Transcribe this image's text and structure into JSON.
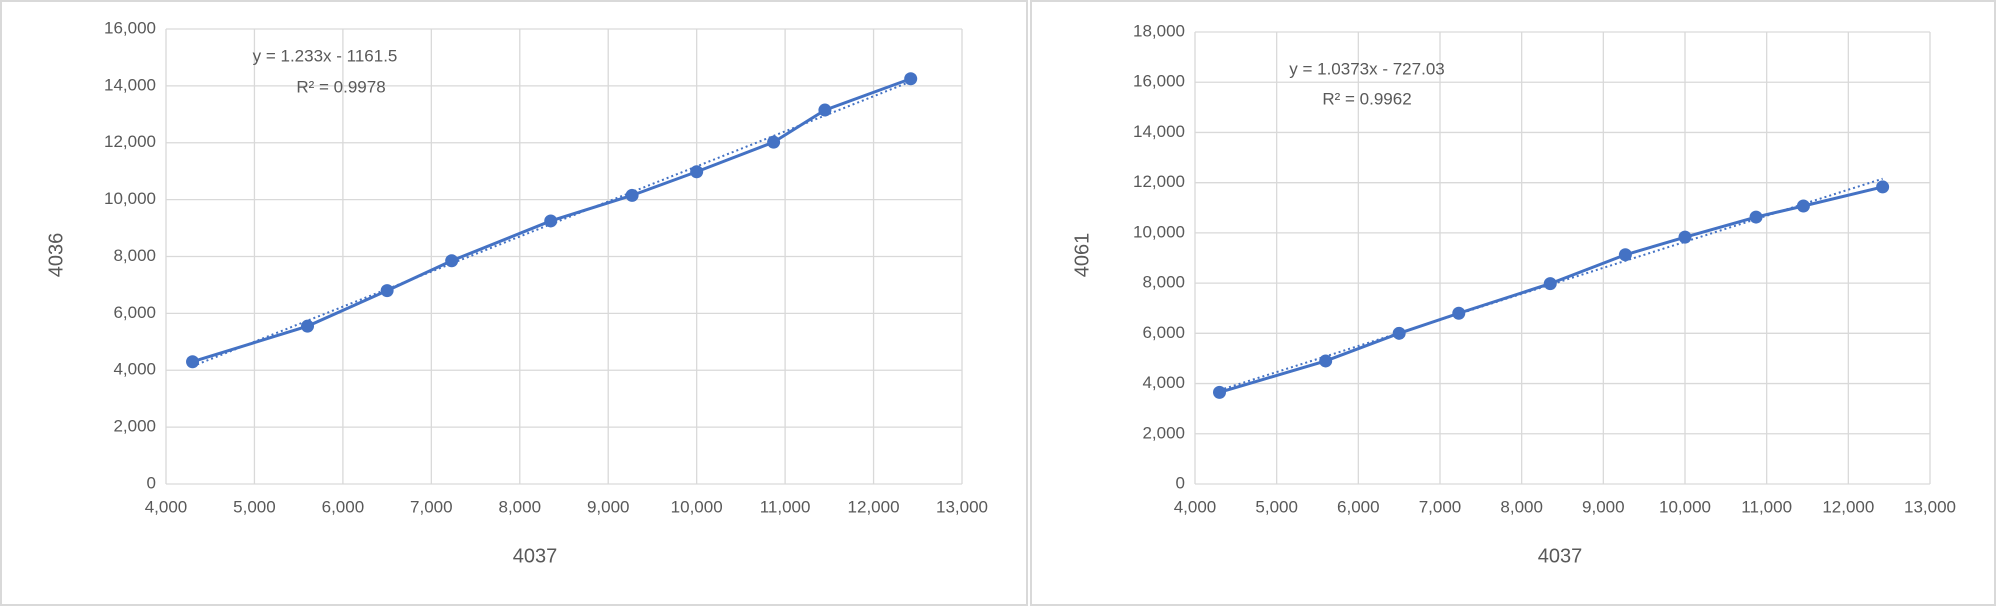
{
  "chart_data": [
    {
      "type": "scatter",
      "lines": true,
      "x_label": "4037",
      "y_label": "4036",
      "x": [
        4300,
        5600,
        6500,
        7230,
        8350,
        9270,
        10000,
        10870,
        11450,
        12420
      ],
      "series": [
        {
          "color": "#4472c4",
          "values": [
            4300,
            5550,
            6800,
            7850,
            9250,
            10150,
            10980,
            12020,
            13150,
            14250
          ]
        }
      ],
      "trendline": {
        "slope": 1.233,
        "intercept": -1161.5,
        "label": "y = 1.233x - 1161.5",
        "r2_label": "R² = 0.9978"
      },
      "xlim": [
        4000,
        13000
      ],
      "xticks": [
        {
          "value": 4000,
          "label": "4,000"
        },
        {
          "value": 5000,
          "label": "5,000"
        },
        {
          "value": 6000,
          "label": "6,000"
        },
        {
          "value": 7000,
          "label": "7,000"
        },
        {
          "value": 8000,
          "label": "8,000"
        },
        {
          "value": 9000,
          "label": "9,000"
        },
        {
          "value": 10000,
          "label": "10,000"
        },
        {
          "value": 11000,
          "label": "11,000"
        },
        {
          "value": 12000,
          "label": "12,000"
        },
        {
          "value": 13000,
          "label": "13,000"
        }
      ],
      "ylim": [
        0,
        16000
      ],
      "yticks": [
        0,
        {
          "value": 2000,
          "label": "2,000"
        },
        {
          "value": 4000,
          "label": "4,000"
        },
        {
          "value": 6000,
          "label": "6,000"
        },
        {
          "value": 8000,
          "label": "8,000"
        },
        {
          "value": 10000,
          "label": "10,000"
        },
        {
          "value": 12000,
          "label": "12,000"
        },
        {
          "value": 14000,
          "label": "14,000"
        },
        {
          "value": 16000,
          "label": "16,000"
        }
      ],
      "grid": true
    },
    {
      "type": "scatter",
      "lines": true,
      "x_label": "4037",
      "y_label": "4061",
      "x": [
        4300,
        5600,
        6500,
        7230,
        8350,
        9270,
        10000,
        10870,
        11450,
        12420
      ],
      "series": [
        {
          "color": "#4472c4",
          "values": [
            3650,
            4900,
            6000,
            6800,
            7980,
            9130,
            9830,
            10630,
            11070,
            11830
          ]
        }
      ],
      "trendline": {
        "slope": 1.0373,
        "intercept": -727.03,
        "label": "y = 1.0373x - 727.03",
        "r2_label": "R² = 0.9962"
      },
      "xlim": [
        4000,
        13000
      ],
      "xticks": [
        {
          "value": 4000,
          "label": "4,000"
        },
        {
          "value": 5000,
          "label": "5,000"
        },
        {
          "value": 6000,
          "label": "6,000"
        },
        {
          "value": 7000,
          "label": "7,000"
        },
        {
          "value": 8000,
          "label": "8,000"
        },
        {
          "value": 9000,
          "label": "9,000"
        },
        {
          "value": 10000,
          "label": "10,000"
        },
        {
          "value": 11000,
          "label": "11,000"
        },
        {
          "value": 12000,
          "label": "12,000"
        },
        {
          "value": 13000,
          "label": "13,000"
        }
      ],
      "ylim": [
        0,
        18000
      ],
      "yticks": [
        0,
        {
          "value": 2000,
          "label": "2,000"
        },
        {
          "value": 4000,
          "label": "4,000"
        },
        {
          "value": 6000,
          "label": "6,000"
        },
        {
          "value": 8000,
          "label": "8,000"
        },
        {
          "value": 10000,
          "label": "10,000"
        },
        {
          "value": 12000,
          "label": "12,000"
        },
        {
          "value": 14000,
          "label": "14,000"
        },
        {
          "value": 16000,
          "label": "16,000"
        },
        {
          "value": 18000,
          "label": "18,000"
        }
      ],
      "grid": true
    }
  ]
}
